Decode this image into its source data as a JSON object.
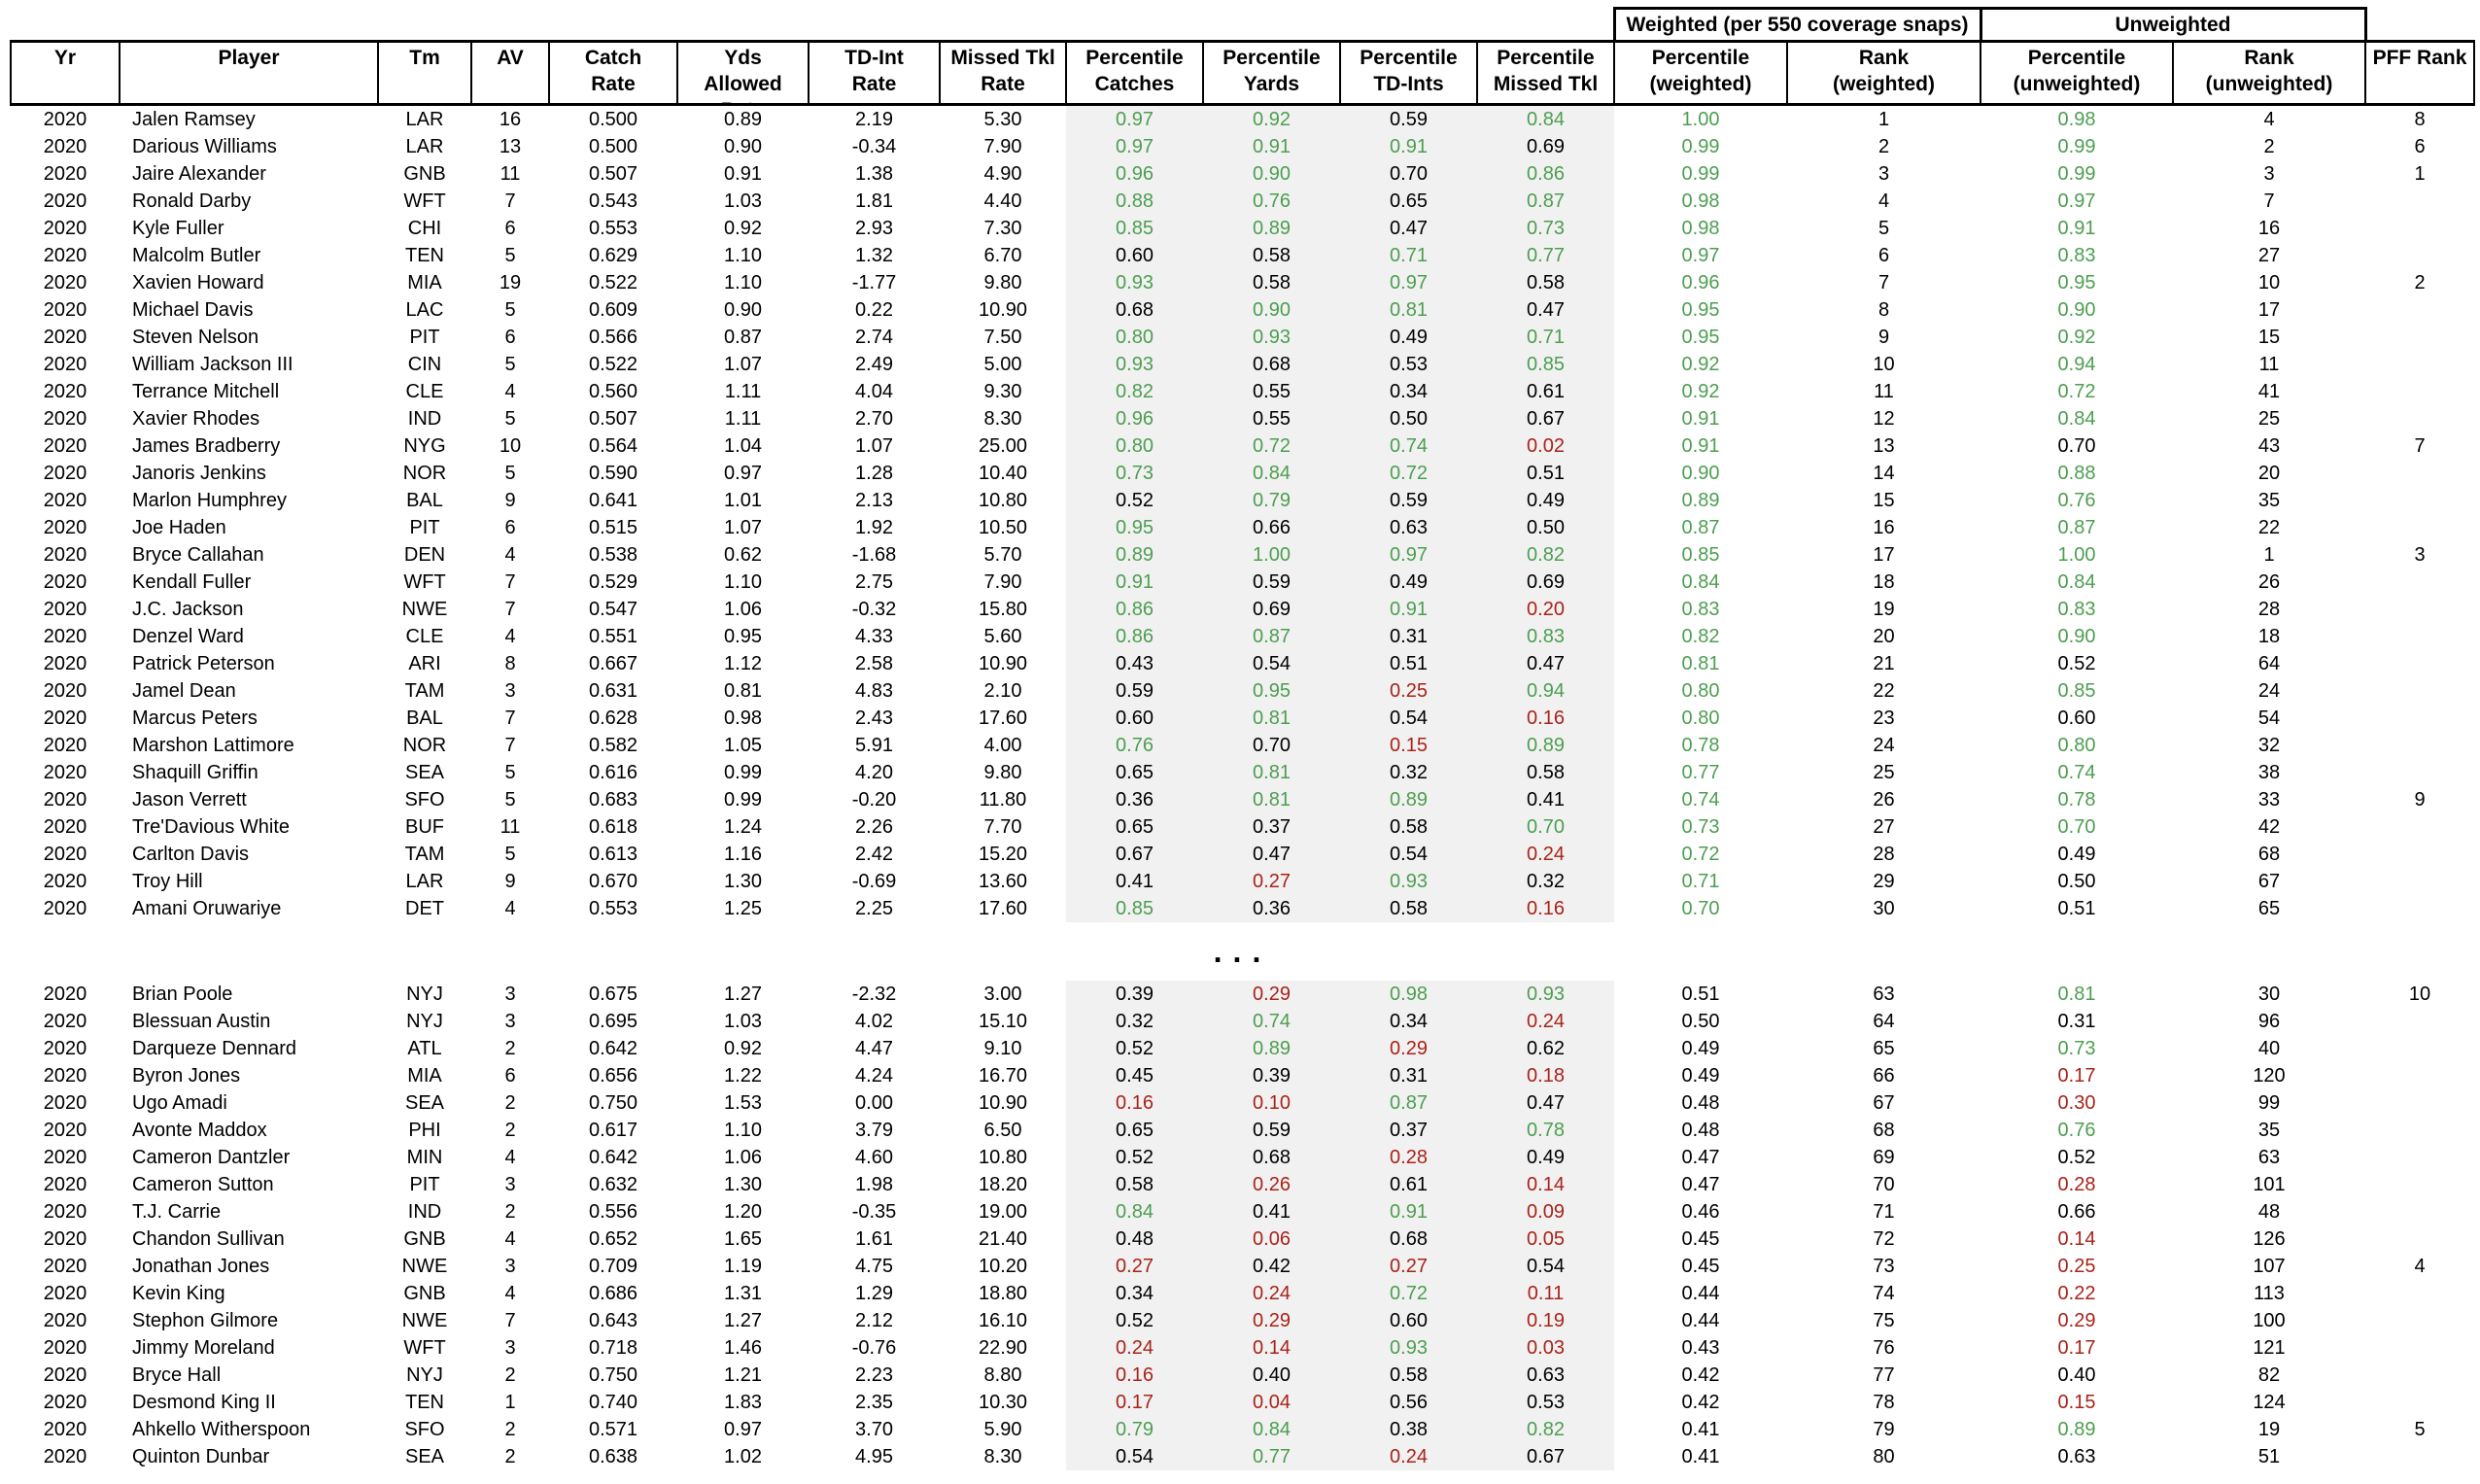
{
  "colors": {
    "positive_green": "#4D9E50",
    "negative_red": "#A92319",
    "shaded_column_bg": "#F1F1F1",
    "border_black": "#000000"
  },
  "chart_data": {
    "type": "table",
    "band": {
      "weighted": "Weighted (per 550 coverage snaps)",
      "unweighted": "Unweighted"
    },
    "columns": [
      "Yr",
      "Player",
      "Tm",
      "AV",
      "Catch\nRate",
      "Yds\nAllowed\nRate",
      "TD-Int\nRate",
      "Missed Tkl\nRate",
      "Percentile\nCatches",
      "Percentile\nYards",
      "Percentile\nTD-Ints",
      "Percentile\nMissed Tkl",
      "Percentile\n(weighted)",
      "Rank\n(weighted)",
      "Percentile\n(unweighted)",
      "Rank\n(unweighted)",
      "PFF Rank"
    ],
    "column_keys": [
      "yr",
      "player",
      "tm",
      "av",
      "catch-rate",
      "yds-allowed-rate",
      "td-int-rate",
      "missed-tkl-rate",
      "pct-catches",
      "pct-yards",
      "pct-td-ints",
      "pct-missed-tkl",
      "pct-weighted",
      "rank-weighted",
      "pct-unweighted",
      "rank-unweighted",
      "pff-rank"
    ],
    "ellipsis": "...",
    "rows_top": [
      [
        "2020",
        "Jalen Ramsey",
        "LAR",
        "16",
        "0.500",
        "0.89",
        "2.19",
        "5.30",
        "0.97|g",
        "0.92|g",
        "0.59",
        "0.84|g",
        "1.00|g",
        "1",
        "0.98|g",
        "4",
        "8"
      ],
      [
        "2020",
        "Darious Williams",
        "LAR",
        "13",
        "0.500",
        "0.90",
        "-0.34",
        "7.90",
        "0.97|g",
        "0.91|g",
        "0.91|g",
        "0.69",
        "0.99|g",
        "2",
        "0.99|g",
        "2",
        "6"
      ],
      [
        "2020",
        "Jaire Alexander",
        "GNB",
        "11",
        "0.507",
        "0.91",
        "1.38",
        "4.90",
        "0.96|g",
        "0.90|g",
        "0.70",
        "0.86|g",
        "0.99|g",
        "3",
        "0.99|g",
        "3",
        "1"
      ],
      [
        "2020",
        "Ronald Darby",
        "WFT",
        "7",
        "0.543",
        "1.03",
        "1.81",
        "4.40",
        "0.88|g",
        "0.76|g",
        "0.65",
        "0.87|g",
        "0.98|g",
        "4",
        "0.97|g",
        "7",
        ""
      ],
      [
        "2020",
        "Kyle Fuller",
        "CHI",
        "6",
        "0.553",
        "0.92",
        "2.93",
        "7.30",
        "0.85|g",
        "0.89|g",
        "0.47",
        "0.73|g",
        "0.98|g",
        "5",
        "0.91|g",
        "16",
        ""
      ],
      [
        "2020",
        "Malcolm Butler",
        "TEN",
        "5",
        "0.629",
        "1.10",
        "1.32",
        "6.70",
        "0.60",
        "0.58",
        "0.71|g",
        "0.77|g",
        "0.97|g",
        "6",
        "0.83|g",
        "27",
        ""
      ],
      [
        "2020",
        "Xavien Howard",
        "MIA",
        "19",
        "0.522",
        "1.10",
        "-1.77",
        "9.80",
        "0.93|g",
        "0.58",
        "0.97|g",
        "0.58",
        "0.96|g",
        "7",
        "0.95|g",
        "10",
        "2"
      ],
      [
        "2020",
        "Michael Davis",
        "LAC",
        "5",
        "0.609",
        "0.90",
        "0.22",
        "10.90",
        "0.68",
        "0.90|g",
        "0.81|g",
        "0.47",
        "0.95|g",
        "8",
        "0.90|g",
        "17",
        ""
      ],
      [
        "2020",
        "Steven Nelson",
        "PIT",
        "6",
        "0.566",
        "0.87",
        "2.74",
        "7.50",
        "0.80|g",
        "0.93|g",
        "0.49",
        "0.71|g",
        "0.95|g",
        "9",
        "0.92|g",
        "15",
        ""
      ],
      [
        "2020",
        "William Jackson III",
        "CIN",
        "5",
        "0.522",
        "1.07",
        "2.49",
        "5.00",
        "0.93|g",
        "0.68",
        "0.53",
        "0.85|g",
        "0.92|g",
        "10",
        "0.94|g",
        "11",
        ""
      ],
      [
        "2020",
        "Terrance Mitchell",
        "CLE",
        "4",
        "0.560",
        "1.11",
        "4.04",
        "9.30",
        "0.82|g",
        "0.55",
        "0.34",
        "0.61",
        "0.92|g",
        "11",
        "0.72|g",
        "41",
        ""
      ],
      [
        "2020",
        "Xavier Rhodes",
        "IND",
        "5",
        "0.507",
        "1.11",
        "2.70",
        "8.30",
        "0.96|g",
        "0.55",
        "0.50",
        "0.67",
        "0.91|g",
        "12",
        "0.84|g",
        "25",
        ""
      ],
      [
        "2020",
        "James Bradberry",
        "NYG",
        "10",
        "0.564",
        "1.04",
        "1.07",
        "25.00",
        "0.80|g",
        "0.72|g",
        "0.74|g",
        "0.02|r",
        "0.91|g",
        "13",
        "0.70",
        "43",
        "7"
      ],
      [
        "2020",
        "Janoris Jenkins",
        "NOR",
        "5",
        "0.590",
        "0.97",
        "1.28",
        "10.40",
        "0.73|g",
        "0.84|g",
        "0.72|g",
        "0.51",
        "0.90|g",
        "14",
        "0.88|g",
        "20",
        ""
      ],
      [
        "2020",
        "Marlon Humphrey",
        "BAL",
        "9",
        "0.641",
        "1.01",
        "2.13",
        "10.80",
        "0.52",
        "0.79|g",
        "0.59",
        "0.49",
        "0.89|g",
        "15",
        "0.76|g",
        "35",
        ""
      ],
      [
        "2020",
        "Joe Haden",
        "PIT",
        "6",
        "0.515",
        "1.07",
        "1.92",
        "10.50",
        "0.95|g",
        "0.66",
        "0.63",
        "0.50",
        "0.87|g",
        "16",
        "0.87|g",
        "22",
        ""
      ],
      [
        "2020",
        "Bryce Callahan",
        "DEN",
        "4",
        "0.538",
        "0.62",
        "-1.68",
        "5.70",
        "0.89|g",
        "1.00|g",
        "0.97|g",
        "0.82|g",
        "0.85|g",
        "17",
        "1.00|g",
        "1",
        "3"
      ],
      [
        "2020",
        "Kendall Fuller",
        "WFT",
        "7",
        "0.529",
        "1.10",
        "2.75",
        "7.90",
        "0.91|g",
        "0.59",
        "0.49",
        "0.69",
        "0.84|g",
        "18",
        "0.84|g",
        "26",
        ""
      ],
      [
        "2020",
        "J.C. Jackson",
        "NWE",
        "7",
        "0.547",
        "1.06",
        "-0.32",
        "15.80",
        "0.86|g",
        "0.69",
        "0.91|g",
        "0.20|r",
        "0.83|g",
        "19",
        "0.83|g",
        "28",
        ""
      ],
      [
        "2020",
        "Denzel Ward",
        "CLE",
        "4",
        "0.551",
        "0.95",
        "4.33",
        "5.60",
        "0.86|g",
        "0.87|g",
        "0.31",
        "0.83|g",
        "0.82|g",
        "20",
        "0.90|g",
        "18",
        ""
      ],
      [
        "2020",
        "Patrick Peterson",
        "ARI",
        "8",
        "0.667",
        "1.12",
        "2.58",
        "10.90",
        "0.43",
        "0.54",
        "0.51",
        "0.47",
        "0.81|g",
        "21",
        "0.52",
        "64",
        ""
      ],
      [
        "2020",
        "Jamel Dean",
        "TAM",
        "3",
        "0.631",
        "0.81",
        "4.83",
        "2.10",
        "0.59",
        "0.95|g",
        "0.25|r",
        "0.94|g",
        "0.80|g",
        "22",
        "0.85|g",
        "24",
        ""
      ],
      [
        "2020",
        "Marcus Peters",
        "BAL",
        "7",
        "0.628",
        "0.98",
        "2.43",
        "17.60",
        "0.60",
        "0.81|g",
        "0.54",
        "0.16|r",
        "0.80|g",
        "23",
        "0.60",
        "54",
        ""
      ],
      [
        "2020",
        "Marshon Lattimore",
        "NOR",
        "7",
        "0.582",
        "1.05",
        "5.91",
        "4.00",
        "0.76|g",
        "0.70",
        "0.15|r",
        "0.89|g",
        "0.78|g",
        "24",
        "0.80|g",
        "32",
        ""
      ],
      [
        "2020",
        "Shaquill Griffin",
        "SEA",
        "5",
        "0.616",
        "0.99",
        "4.20",
        "9.80",
        "0.65",
        "0.81|g",
        "0.32",
        "0.58",
        "0.77|g",
        "25",
        "0.74|g",
        "38",
        ""
      ],
      [
        "2020",
        "Jason Verrett",
        "SFO",
        "5",
        "0.683",
        "0.99",
        "-0.20",
        "11.80",
        "0.36",
        "0.81|g",
        "0.89|g",
        "0.41",
        "0.74|g",
        "26",
        "0.78|g",
        "33",
        "9"
      ],
      [
        "2020",
        "Tre'Davious White",
        "BUF",
        "11",
        "0.618",
        "1.24",
        "2.26",
        "7.70",
        "0.65",
        "0.37",
        "0.58",
        "0.70|g",
        "0.73|g",
        "27",
        "0.70|g",
        "42",
        ""
      ],
      [
        "2020",
        "Carlton Davis",
        "TAM",
        "5",
        "0.613",
        "1.16",
        "2.42",
        "15.20",
        "0.67",
        "0.47",
        "0.54",
        "0.24|r",
        "0.72|g",
        "28",
        "0.49",
        "68",
        ""
      ],
      [
        "2020",
        "Troy Hill",
        "LAR",
        "9",
        "0.670",
        "1.30",
        "-0.69",
        "13.60",
        "0.41",
        "0.27|r",
        "0.93|g",
        "0.32",
        "0.71|g",
        "29",
        "0.50",
        "67",
        ""
      ],
      [
        "2020",
        "Amani Oruwariye",
        "DET",
        "4",
        "0.553",
        "1.25",
        "2.25",
        "17.60",
        "0.85|g",
        "0.36",
        "0.58",
        "0.16|r",
        "0.70|g",
        "30",
        "0.51",
        "65",
        ""
      ]
    ],
    "rows_bottom": [
      [
        "2020",
        "Brian Poole",
        "NYJ",
        "3",
        "0.675",
        "1.27",
        "-2.32",
        "3.00",
        "0.39",
        "0.29|r",
        "0.98|g",
        "0.93|g",
        "0.51",
        "63",
        "0.81|g",
        "30",
        "10"
      ],
      [
        "2020",
        "Blessuan Austin",
        "NYJ",
        "3",
        "0.695",
        "1.03",
        "4.02",
        "15.10",
        "0.32",
        "0.74|g",
        "0.34",
        "0.24|r",
        "0.50",
        "64",
        "0.31",
        "96",
        ""
      ],
      [
        "2020",
        "Darqueze Dennard",
        "ATL",
        "2",
        "0.642",
        "0.92",
        "4.47",
        "9.10",
        "0.52",
        "0.89|g",
        "0.29|r",
        "0.62",
        "0.49",
        "65",
        "0.73|g",
        "40",
        ""
      ],
      [
        "2020",
        "Byron Jones",
        "MIA",
        "6",
        "0.656",
        "1.22",
        "4.24",
        "16.70",
        "0.45",
        "0.39",
        "0.31",
        "0.18|r",
        "0.49",
        "66",
        "0.17|r",
        "120",
        ""
      ],
      [
        "2020",
        "Ugo Amadi",
        "SEA",
        "2",
        "0.750",
        "1.53",
        "0.00",
        "10.90",
        "0.16|r",
        "0.10|r",
        "0.87|g",
        "0.47",
        "0.48",
        "67",
        "0.30|r",
        "99",
        ""
      ],
      [
        "2020",
        "Avonte Maddox",
        "PHI",
        "2",
        "0.617",
        "1.10",
        "3.79",
        "6.50",
        "0.65",
        "0.59",
        "0.37",
        "0.78|g",
        "0.48",
        "68",
        "0.76|g",
        "35",
        ""
      ],
      [
        "2020",
        "Cameron Dantzler",
        "MIN",
        "4",
        "0.642",
        "1.06",
        "4.60",
        "10.80",
        "0.52",
        "0.68",
        "0.28|r",
        "0.49",
        "0.47",
        "69",
        "0.52",
        "63",
        ""
      ],
      [
        "2020",
        "Cameron Sutton",
        "PIT",
        "3",
        "0.632",
        "1.30",
        "1.98",
        "18.20",
        "0.58",
        "0.26|r",
        "0.61",
        "0.14|r",
        "0.47",
        "70",
        "0.28|r",
        "101",
        ""
      ],
      [
        "2020",
        "T.J. Carrie",
        "IND",
        "2",
        "0.556",
        "1.20",
        "-0.35",
        "19.00",
        "0.84|g",
        "0.41",
        "0.91|g",
        "0.09|r",
        "0.46",
        "71",
        "0.66",
        "48",
        ""
      ],
      [
        "2020",
        "Chandon Sullivan",
        "GNB",
        "4",
        "0.652",
        "1.65",
        "1.61",
        "21.40",
        "0.48",
        "0.06|r",
        "0.68",
        "0.05|r",
        "0.45",
        "72",
        "0.14|r",
        "126",
        ""
      ],
      [
        "2020",
        "Jonathan Jones",
        "NWE",
        "3",
        "0.709",
        "1.19",
        "4.75",
        "10.20",
        "0.27|r",
        "0.42",
        "0.27|r",
        "0.54",
        "0.45",
        "73",
        "0.25|r",
        "107",
        "4"
      ],
      [
        "2020",
        "Kevin King",
        "GNB",
        "4",
        "0.686",
        "1.31",
        "1.29",
        "18.80",
        "0.34",
        "0.24|r",
        "0.72|g",
        "0.11|r",
        "0.44",
        "74",
        "0.22|r",
        "113",
        ""
      ],
      [
        "2020",
        "Stephon Gilmore",
        "NWE",
        "7",
        "0.643",
        "1.27",
        "2.12",
        "16.10",
        "0.52",
        "0.29|r",
        "0.60",
        "0.19|r",
        "0.44",
        "75",
        "0.29|r",
        "100",
        ""
      ],
      [
        "2020",
        "Jimmy Moreland",
        "WFT",
        "3",
        "0.718",
        "1.46",
        "-0.76",
        "22.90",
        "0.24|r",
        "0.14|r",
        "0.93|g",
        "0.03|r",
        "0.43",
        "76",
        "0.17|r",
        "121",
        ""
      ],
      [
        "2020",
        "Bryce Hall",
        "NYJ",
        "2",
        "0.750",
        "1.21",
        "2.23",
        "8.80",
        "0.16|r",
        "0.40",
        "0.58",
        "0.63",
        "0.42",
        "77",
        "0.40",
        "82",
        ""
      ],
      [
        "2020",
        "Desmond King II",
        "TEN",
        "1",
        "0.740",
        "1.83",
        "2.35",
        "10.30",
        "0.17|r",
        "0.04|r",
        "0.56",
        "0.53",
        "0.42",
        "78",
        "0.15|r",
        "124",
        ""
      ],
      [
        "2020",
        "Ahkello Witherspoon",
        "SFO",
        "2",
        "0.571",
        "0.97",
        "3.70",
        "5.90",
        "0.79|g",
        "0.84|g",
        "0.38",
        "0.82|g",
        "0.41",
        "79",
        "0.89|g",
        "19",
        "5"
      ],
      [
        "2020",
        "Quinton Dunbar",
        "SEA",
        "2",
        "0.638",
        "1.02",
        "4.95",
        "8.30",
        "0.54",
        "0.77|g",
        "0.24|r",
        "0.67",
        "0.41",
        "80",
        "0.63",
        "51",
        ""
      ]
    ]
  }
}
